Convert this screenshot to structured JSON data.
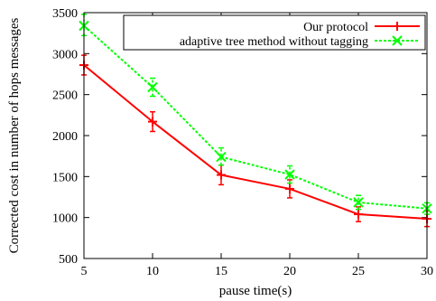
{
  "chart_data": {
    "type": "line",
    "title": "",
    "xlabel": "pause time(s)",
    "ylabel": "Corrected cost in number of hops messages",
    "x": [
      5,
      10,
      15,
      20,
      25,
      30
    ],
    "xlim": [
      5,
      30
    ],
    "ylim": [
      500,
      3500
    ],
    "xticks": [
      "5",
      "10",
      "15",
      "20",
      "25",
      "30"
    ],
    "yticks": [
      "500",
      "1000",
      "1500",
      "2000",
      "2500",
      "3000",
      "3500"
    ],
    "grid": false,
    "legend_position": "top-right",
    "series": [
      {
        "name": "Our protocol",
        "color": "#ff0000",
        "line_style": "solid",
        "marker": "plus",
        "values": [
          2860,
          2170,
          1520,
          1350,
          1040,
          985
        ],
        "error": [
          [
            2740,
            2980
          ],
          [
            2050,
            2290
          ],
          [
            1400,
            1640
          ],
          [
            1240,
            1460
          ],
          [
            950,
            1130
          ],
          [
            890,
            1080
          ]
        ]
      },
      {
        "name": "adaptive tree method without tagging",
        "color": "#00ff00",
        "line_style": "dotted",
        "marker": "x",
        "values": [
          3340,
          2590,
          1740,
          1525,
          1185,
          1110
        ],
        "error": [
          [
            3220,
            3480
          ],
          [
            2480,
            2700
          ],
          [
            1640,
            1850
          ],
          [
            1420,
            1630
          ],
          [
            1100,
            1270
          ],
          [
            1040,
            1180
          ]
        ]
      }
    ]
  }
}
